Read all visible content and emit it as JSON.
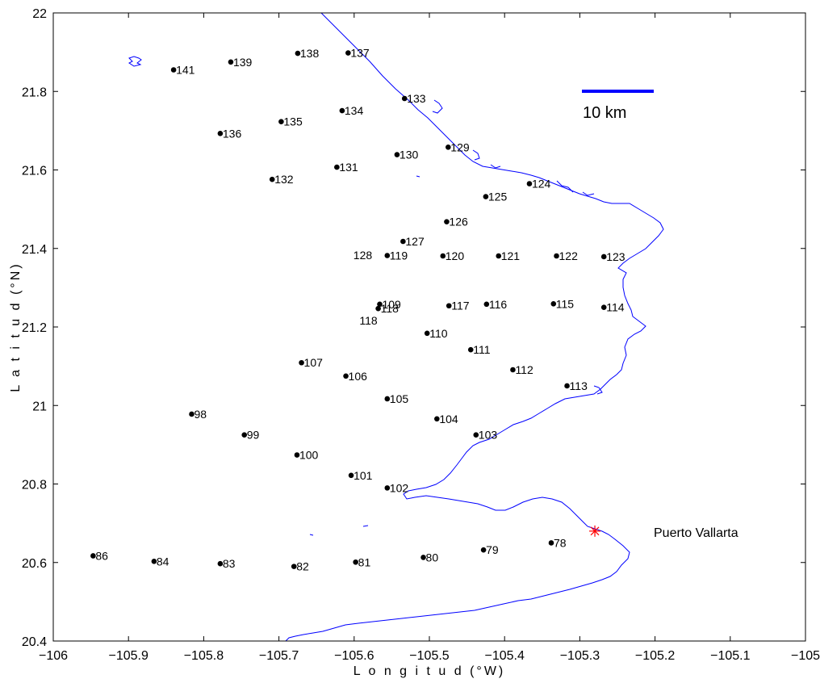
{
  "axes": {
    "xlabel": "L o n g i t u d (°W)",
    "ylabel": "L a t i t u d (°N)",
    "xlim": [
      -106,
      -105
    ],
    "ylim": [
      20.4,
      22
    ],
    "xticks": [
      -106,
      -105.9,
      -105.8,
      -105.7,
      -105.6,
      -105.5,
      -105.4,
      -105.3,
      -105.2,
      -105.1,
      -105
    ],
    "xtick_labels": [
      "−106",
      "−105.9",
      "−105.8",
      "−105.7",
      "−105.6",
      "−105.5",
      "−105.4",
      "−105.3",
      "−105.2",
      "−105.1",
      "−105"
    ],
    "yticks": [
      20.4,
      20.6,
      20.8,
      21,
      21.2,
      21.4,
      21.6,
      21.8,
      22
    ],
    "ytick_labels": [
      "20.4",
      "20.6",
      "20.8",
      "21",
      "21.2",
      "21.4",
      "21.6",
      "21.8",
      "22"
    ]
  },
  "scale_bar": {
    "label": "10 km",
    "length_km": 10,
    "color": "#0000ff"
  },
  "place": {
    "name": "Puerto Vallarta",
    "lon": -105.28,
    "lat": 20.68,
    "marker_color": "#ff0000"
  },
  "coast_color": "#0000ff",
  "stations": [
    {
      "label": "141",
      "lon": -105.84,
      "lat": 21.855
    },
    {
      "label": "139",
      "lon": -105.764,
      "lat": 21.875
    },
    {
      "label": "138",
      "lon": -105.675,
      "lat": 21.897
    },
    {
      "label": "137",
      "lon": -105.608,
      "lat": 21.898
    },
    {
      "label": "133",
      "lon": -105.533,
      "lat": 21.782
    },
    {
      "label": "134",
      "lon": -105.616,
      "lat": 21.751
    },
    {
      "label": "135",
      "lon": -105.697,
      "lat": 21.723
    },
    {
      "label": "136",
      "lon": -105.778,
      "lat": 21.693
    },
    {
      "label": "130",
      "lon": -105.543,
      "lat": 21.639
    },
    {
      "label": "129",
      "lon": -105.475,
      "lat": 21.658
    },
    {
      "label": "131",
      "lon": -105.623,
      "lat": 21.607
    },
    {
      "label": "132",
      "lon": -105.709,
      "lat": 21.576
    },
    {
      "label": "124",
      "lon": -105.367,
      "lat": 21.565
    },
    {
      "label": "125",
      "lon": -105.425,
      "lat": 21.532
    },
    {
      "label": "126",
      "lon": -105.477,
      "lat": 21.468
    },
    {
      "label": "127",
      "lon": -105.535,
      "lat": 21.418
    },
    {
      "label": "119",
      "lon": -105.556,
      "lat": 21.382
    },
    {
      "label": "120",
      "lon": -105.482,
      "lat": 21.381
    },
    {
      "label": "121",
      "lon": -105.408,
      "lat": 21.381
    },
    {
      "label": "122",
      "lon": -105.331,
      "lat": 21.381
    },
    {
      "label": "123",
      "lon": -105.268,
      "lat": 21.379
    },
    {
      "label": "109",
      "lon": -105.566,
      "lat": 21.258
    },
    {
      "label": "118",
      "lon": -105.568,
      "lat": 21.247
    },
    {
      "label": "117",
      "lon": -105.474,
      "lat": 21.254
    },
    {
      "label": "116",
      "lon": -105.424,
      "lat": 21.258
    },
    {
      "label": "115",
      "lon": -105.335,
      "lat": 21.259
    },
    {
      "label": "114",
      "lon": -105.268,
      "lat": 21.25
    },
    {
      "label": "110",
      "lon": -105.503,
      "lat": 21.184
    },
    {
      "label": "111",
      "lon": -105.445,
      "lat": 21.142
    },
    {
      "label": "107",
      "lon": -105.67,
      "lat": 21.109
    },
    {
      "label": "106",
      "lon": -105.611,
      "lat": 21.075
    },
    {
      "label": "112",
      "lon": -105.389,
      "lat": 21.091
    },
    {
      "label": "113",
      "lon": -105.317,
      "lat": 21.05
    },
    {
      "label": "105",
      "lon": -105.556,
      "lat": 21.017
    },
    {
      "label": "98",
      "lon": -105.816,
      "lat": 20.978
    },
    {
      "label": "104",
      "lon": -105.49,
      "lat": 20.966
    },
    {
      "label": "99",
      "lon": -105.746,
      "lat": 20.925
    },
    {
      "label": "103",
      "lon": -105.438,
      "lat": 20.925
    },
    {
      "label": "100",
      "lon": -105.676,
      "lat": 20.874
    },
    {
      "label": "101",
      "lon": -105.604,
      "lat": 20.822
    },
    {
      "label": "102",
      "lon": -105.556,
      "lat": 20.79
    },
    {
      "label": "78",
      "lon": -105.338,
      "lat": 20.65
    },
    {
      "label": "79",
      "lon": -105.428,
      "lat": 20.632
    },
    {
      "label": "86",
      "lon": -105.947,
      "lat": 20.617
    },
    {
      "label": "84",
      "lon": -105.866,
      "lat": 20.603
    },
    {
      "label": "80",
      "lon": -105.508,
      "lat": 20.613
    },
    {
      "label": "81",
      "lon": -105.598,
      "lat": 20.601
    },
    {
      "label": "83",
      "lon": -105.778,
      "lat": 20.597
    },
    {
      "label": "82",
      "lon": -105.68,
      "lat": 20.59
    }
  ],
  "offset_labels": [
    {
      "label": "128",
      "lon": -105.576,
      "lat": 21.383
    },
    {
      "label": "118",
      "lon": -105.569,
      "lat": 21.216
    }
  ]
}
